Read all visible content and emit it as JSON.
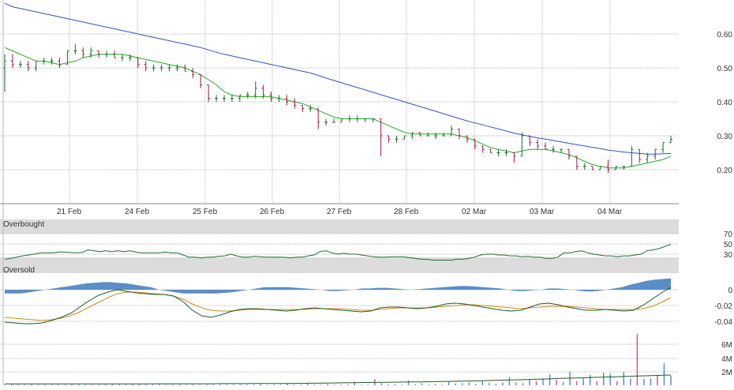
{
  "colors": {
    "up": "#1b6b2a",
    "down": "#9c1846",
    "ma_fast": "#22aa22",
    "ma_slow": "#3a4fc0",
    "rsi_line": "#1f6b3a",
    "rsi_band": "#dcdcdc",
    "macd_hist": "#5b8ec6",
    "macd_line": "#1f5a2a",
    "signal_line": "#d08a1e",
    "vol_up": "#5b8ec6",
    "vol_down": "#d3577f",
    "grid": "#b8b8b8"
  },
  "chart_data": [
    {
      "type": "candlestick",
      "panel": "price",
      "x_labels": [
        "21 Feb",
        "24 Feb",
        "25 Feb",
        "26 Feb",
        "27 Feb",
        "28 Feb",
        "02 Mar",
        "03 Mar",
        "04 Mar"
      ],
      "y_ticks": [
        "0.60",
        "0.50",
        "0.40",
        "0.30",
        "0.20"
      ],
      "ylim": [
        0.1,
        0.7
      ],
      "grid": true,
      "ohlc": [
        [
          0.5,
          0.54,
          0.43,
          0.52
        ],
        [
          0.52,
          0.54,
          0.5,
          0.51
        ],
        [
          0.51,
          0.52,
          0.5,
          0.51
        ],
        [
          0.51,
          0.52,
          0.49,
          0.5
        ],
        [
          0.5,
          0.52,
          0.49,
          0.52
        ],
        [
          0.52,
          0.53,
          0.51,
          0.52
        ],
        [
          0.52,
          0.53,
          0.51,
          0.52
        ],
        [
          0.52,
          0.53,
          0.5,
          0.51
        ],
        [
          0.51,
          0.55,
          0.51,
          0.55
        ],
        [
          0.55,
          0.57,
          0.54,
          0.55
        ],
        [
          0.55,
          0.56,
          0.53,
          0.54
        ],
        [
          0.54,
          0.56,
          0.53,
          0.55
        ],
        [
          0.55,
          0.55,
          0.53,
          0.54
        ],
        [
          0.54,
          0.55,
          0.53,
          0.54
        ],
        [
          0.54,
          0.55,
          0.53,
          0.53
        ],
        [
          0.53,
          0.54,
          0.52,
          0.53
        ],
        [
          0.53,
          0.54,
          0.52,
          0.53
        ],
        [
          0.53,
          0.53,
          0.5,
          0.51
        ],
        [
          0.51,
          0.52,
          0.49,
          0.5
        ],
        [
          0.5,
          0.51,
          0.49,
          0.5
        ],
        [
          0.5,
          0.51,
          0.49,
          0.5
        ],
        [
          0.5,
          0.51,
          0.49,
          0.5
        ],
        [
          0.5,
          0.51,
          0.49,
          0.5
        ],
        [
          0.5,
          0.51,
          0.49,
          0.49
        ],
        [
          0.49,
          0.5,
          0.47,
          0.48
        ],
        [
          0.48,
          0.48,
          0.44,
          0.45
        ],
        [
          0.45,
          0.45,
          0.4,
          0.41
        ],
        [
          0.41,
          0.42,
          0.4,
          0.41
        ],
        [
          0.41,
          0.42,
          0.4,
          0.41
        ],
        [
          0.41,
          0.42,
          0.4,
          0.41
        ],
        [
          0.41,
          0.42,
          0.4,
          0.42
        ],
        [
          0.42,
          0.43,
          0.41,
          0.42
        ],
        [
          0.42,
          0.46,
          0.41,
          0.44
        ],
        [
          0.44,
          0.45,
          0.41,
          0.42
        ],
        [
          0.42,
          0.43,
          0.4,
          0.41
        ],
        [
          0.41,
          0.42,
          0.4,
          0.41
        ],
        [
          0.41,
          0.42,
          0.39,
          0.4
        ],
        [
          0.4,
          0.41,
          0.38,
          0.39
        ],
        [
          0.39,
          0.39,
          0.37,
          0.38
        ],
        [
          0.38,
          0.39,
          0.37,
          0.38
        ],
        [
          0.38,
          0.38,
          0.32,
          0.34
        ],
        [
          0.34,
          0.35,
          0.33,
          0.34
        ],
        [
          0.34,
          0.35,
          0.34,
          0.34
        ],
        [
          0.34,
          0.35,
          0.34,
          0.35
        ],
        [
          0.35,
          0.36,
          0.34,
          0.35
        ],
        [
          0.35,
          0.36,
          0.34,
          0.35
        ],
        [
          0.35,
          0.35,
          0.34,
          0.35
        ],
        [
          0.35,
          0.35,
          0.34,
          0.35
        ],
        [
          0.35,
          0.35,
          0.24,
          0.3
        ],
        [
          0.3,
          0.3,
          0.28,
          0.29
        ],
        [
          0.29,
          0.3,
          0.28,
          0.29
        ],
        [
          0.29,
          0.3,
          0.29,
          0.3
        ],
        [
          0.3,
          0.31,
          0.29,
          0.31
        ],
        [
          0.31,
          0.31,
          0.3,
          0.3
        ],
        [
          0.3,
          0.31,
          0.3,
          0.3
        ],
        [
          0.3,
          0.31,
          0.29,
          0.3
        ],
        [
          0.3,
          0.31,
          0.3,
          0.3
        ],
        [
          0.3,
          0.33,
          0.3,
          0.32
        ],
        [
          0.32,
          0.32,
          0.29,
          0.3
        ],
        [
          0.3,
          0.3,
          0.28,
          0.29
        ],
        [
          0.29,
          0.29,
          0.26,
          0.27
        ],
        [
          0.27,
          0.27,
          0.25,
          0.26
        ],
        [
          0.26,
          0.26,
          0.25,
          0.25
        ],
        [
          0.25,
          0.26,
          0.24,
          0.25
        ],
        [
          0.25,
          0.26,
          0.24,
          0.25
        ],
        [
          0.25,
          0.25,
          0.22,
          0.24
        ],
        [
          0.24,
          0.31,
          0.24,
          0.3
        ],
        [
          0.3,
          0.3,
          0.27,
          0.28
        ],
        [
          0.28,
          0.29,
          0.26,
          0.27
        ],
        [
          0.27,
          0.28,
          0.26,
          0.26
        ],
        [
          0.26,
          0.27,
          0.25,
          0.26
        ],
        [
          0.26,
          0.26,
          0.25,
          0.26
        ],
        [
          0.26,
          0.26,
          0.23,
          0.24
        ],
        [
          0.24,
          0.24,
          0.2,
          0.21
        ],
        [
          0.21,
          0.22,
          0.2,
          0.21
        ],
        [
          0.21,
          0.21,
          0.2,
          0.2
        ],
        [
          0.2,
          0.21,
          0.2,
          0.21
        ],
        [
          0.21,
          0.23,
          0.19,
          0.2
        ],
        [
          0.2,
          0.21,
          0.2,
          0.21
        ],
        [
          0.21,
          0.21,
          0.2,
          0.21
        ],
        [
          0.21,
          0.27,
          0.21,
          0.26
        ],
        [
          0.26,
          0.26,
          0.22,
          0.23
        ],
        [
          0.23,
          0.25,
          0.22,
          0.24
        ],
        [
          0.24,
          0.26,
          0.23,
          0.26
        ],
        [
          0.26,
          0.28,
          0.25,
          0.28
        ],
        [
          0.28,
          0.3,
          0.28,
          0.29
        ]
      ],
      "ma_fast": [
        0.56,
        0.55,
        0.54,
        0.53,
        0.52,
        0.52,
        0.515,
        0.51,
        0.515,
        0.52,
        0.53,
        0.535,
        0.54,
        0.54,
        0.54,
        0.54,
        0.535,
        0.53,
        0.525,
        0.52,
        0.515,
        0.51,
        0.505,
        0.5,
        0.49,
        0.48,
        0.465,
        0.45,
        0.43,
        0.42,
        0.415,
        0.415,
        0.415,
        0.415,
        0.415,
        0.41,
        0.405,
        0.4,
        0.395,
        0.385,
        0.375,
        0.365,
        0.355,
        0.35,
        0.35,
        0.35,
        0.35,
        0.35,
        0.34,
        0.33,
        0.32,
        0.31,
        0.305,
        0.305,
        0.305,
        0.305,
        0.305,
        0.305,
        0.3,
        0.295,
        0.285,
        0.275,
        0.265,
        0.26,
        0.255,
        0.25,
        0.255,
        0.26,
        0.26,
        0.26,
        0.255,
        0.25,
        0.245,
        0.235,
        0.225,
        0.215,
        0.21,
        0.205,
        0.205,
        0.205,
        0.21,
        0.215,
        0.22,
        0.225,
        0.23,
        0.24
      ],
      "ma_slow": [
        0.69,
        0.68,
        0.675,
        0.67,
        0.665,
        0.66,
        0.655,
        0.65,
        0.645,
        0.64,
        0.635,
        0.63,
        0.625,
        0.62,
        0.615,
        0.61,
        0.605,
        0.6,
        0.595,
        0.59,
        0.585,
        0.58,
        0.575,
        0.57,
        0.565,
        0.56,
        0.553,
        0.546,
        0.54,
        0.535,
        0.53,
        0.525,
        0.52,
        0.515,
        0.51,
        0.505,
        0.5,
        0.495,
        0.49,
        0.485,
        0.478,
        0.47,
        0.463,
        0.456,
        0.449,
        0.442,
        0.435,
        0.428,
        0.421,
        0.414,
        0.407,
        0.4,
        0.393,
        0.386,
        0.379,
        0.372,
        0.365,
        0.358,
        0.351,
        0.344,
        0.338,
        0.332,
        0.326,
        0.32,
        0.314,
        0.308,
        0.303,
        0.298,
        0.294,
        0.29,
        0.286,
        0.282,
        0.278,
        0.274,
        0.27,
        0.266,
        0.262,
        0.258,
        0.255,
        0.252,
        0.25,
        0.248,
        0.246,
        0.246,
        0.247,
        0.248
      ]
    },
    {
      "type": "line",
      "panel": "rsi",
      "y_ticks": [
        "70",
        "50",
        "30"
      ],
      "band_labels": {
        "overbought": "Overbought",
        "oversold": "Oversold"
      },
      "ylim": [
        0,
        100
      ],
      "values": [
        40,
        42,
        45,
        48,
        50,
        52,
        55,
        55,
        55,
        57,
        57,
        56,
        55,
        56,
        62,
        60,
        58,
        60,
        58,
        60,
        58,
        60,
        57,
        55,
        55,
        55,
        55,
        57,
        55,
        55,
        50,
        45,
        45,
        43,
        45,
        45,
        47,
        48,
        52,
        48,
        45,
        45,
        47,
        46,
        45,
        45,
        45,
        45,
        43,
        45,
        45,
        48,
        50,
        58,
        60,
        55,
        52,
        54,
        52,
        52,
        50,
        48,
        46,
        45,
        45,
        46,
        46,
        46,
        44,
        42,
        40,
        40,
        38,
        38,
        38,
        38,
        40,
        40,
        42,
        45,
        50,
        52,
        52,
        50,
        50,
        48,
        48,
        46,
        47,
        45,
        45,
        42,
        42,
        45,
        55,
        55,
        58,
        60,
        55,
        52,
        50,
        48,
        48,
        46,
        48,
        48,
        50,
        52,
        60,
        62,
        65,
        70,
        75
      ]
    },
    {
      "type": "area",
      "panel": "macd",
      "y_ticks": [
        "0",
        "-0.02",
        "-0.04"
      ],
      "ylim": [
        -0.05,
        0.01
      ],
      "histogram": [
        -0.003,
        -0.003,
        -0.003,
        -0.002,
        -0.001,
        0.0,
        0.001,
        0.002,
        0.003,
        0.004,
        0.005,
        0.0055,
        0.006,
        0.006,
        0.0055,
        0.005,
        0.004,
        0.003,
        0.002,
        0.0,
        -0.001,
        -0.002,
        -0.003,
        -0.003,
        -0.003,
        -0.003,
        -0.003,
        -0.0025,
        -0.002,
        -0.001,
        0.0,
        0.001,
        0.002,
        0.002,
        0.002,
        0.002,
        0.0015,
        0.001,
        0.0005,
        0.0,
        -0.001,
        -0.001,
        -0.0005,
        0.0,
        0.001,
        0.001,
        0.0015,
        0.0015,
        0.001,
        0.0005,
        0.0,
        0.0005,
        0.001,
        0.0015,
        0.002,
        0.0025,
        0.003,
        0.003,
        0.0025,
        0.002,
        0.0015,
        0.001,
        0.0,
        -0.001,
        -0.001,
        -0.0005,
        0.0,
        0.001,
        0.001,
        0.0005,
        0.0,
        -0.001,
        -0.0015,
        -0.001,
        0.0,
        0.001,
        0.002,
        0.004,
        0.0055,
        0.007,
        0.008,
        0.0085,
        0.009
      ],
      "macd": [
        -0.041,
        -0.042,
        -0.043,
        -0.043,
        -0.042,
        -0.039,
        -0.035,
        -0.03,
        -0.022,
        -0.014,
        -0.007,
        -0.003,
        0.0,
        -0.002,
        -0.004,
        -0.005,
        -0.006,
        -0.006,
        -0.008,
        -0.015,
        -0.026,
        -0.033,
        -0.035,
        -0.032,
        -0.028,
        -0.025,
        -0.024,
        -0.024,
        -0.025,
        -0.026,
        -0.027,
        -0.026,
        -0.024,
        -0.023,
        -0.024,
        -0.025,
        -0.026,
        -0.027,
        -0.028,
        -0.027,
        -0.023,
        -0.022,
        -0.022,
        -0.023,
        -0.024,
        -0.023,
        -0.021,
        -0.018,
        -0.017,
        -0.018,
        -0.02,
        -0.022,
        -0.024,
        -0.026,
        -0.027,
        -0.026,
        -0.022,
        -0.018,
        -0.017,
        -0.019,
        -0.022,
        -0.024,
        -0.026,
        -0.026,
        -0.025,
        -0.026,
        -0.027,
        -0.026,
        -0.02,
        -0.012,
        -0.004,
        0.003
      ],
      "signal": [
        -0.035,
        -0.036,
        -0.037,
        -0.038,
        -0.039,
        -0.038,
        -0.036,
        -0.033,
        -0.028,
        -0.022,
        -0.016,
        -0.01,
        -0.005,
        -0.003,
        -0.003,
        -0.004,
        -0.005,
        -0.006,
        -0.008,
        -0.012,
        -0.018,
        -0.023,
        -0.026,
        -0.027,
        -0.027,
        -0.026,
        -0.025,
        -0.025,
        -0.025,
        -0.025,
        -0.025,
        -0.025,
        -0.025,
        -0.024,
        -0.024,
        -0.024,
        -0.024,
        -0.025,
        -0.026,
        -0.026,
        -0.025,
        -0.024,
        -0.023,
        -0.023,
        -0.023,
        -0.023,
        -0.022,
        -0.021,
        -0.02,
        -0.019,
        -0.019,
        -0.02,
        -0.021,
        -0.022,
        -0.023,
        -0.024,
        -0.023,
        -0.022,
        -0.021,
        -0.021,
        -0.021,
        -0.022,
        -0.023,
        -0.024,
        -0.025,
        -0.025,
        -0.025,
        -0.025,
        -0.024,
        -0.021,
        -0.016,
        -0.01
      ]
    },
    {
      "type": "bar",
      "panel": "volume",
      "y_ticks": [
        "6M",
        "4M",
        "2M"
      ],
      "ylim": [
        0,
        9000000
      ],
      "values": [
        100000,
        150000,
        100000,
        80000,
        120000,
        90000,
        100000,
        80000,
        100000,
        90000,
        120000,
        110000,
        100000,
        80000,
        90000,
        100000,
        130000,
        90000,
        100000,
        110000,
        120000,
        100000,
        100000,
        150000,
        90000,
        100000,
        110000,
        90000,
        100000,
        80000,
        110000,
        90000,
        100000,
        120000,
        100000,
        150000,
        100000,
        90000,
        200000,
        80000,
        100000,
        90000,
        250000,
        90000,
        100000,
        300000,
        110000,
        100000,
        200000,
        90000,
        100000,
        120000,
        500000,
        90000,
        100000,
        900000,
        300000,
        150000,
        180000,
        100000,
        700000,
        150000,
        300000,
        100000,
        200000,
        100000,
        500000,
        250000,
        300000,
        400000,
        200000,
        600000,
        350000,
        200000,
        400000,
        1200000,
        400000,
        300000,
        800000,
        600000,
        1000000,
        1600000,
        800000,
        500000,
        2000000,
        600000,
        1000000,
        1500000,
        600000,
        1800000,
        1700000,
        600000,
        1900000,
        1000000,
        7500000,
        900000,
        1000000,
        1500000,
        3200000,
        1400000
      ],
      "ma": [
        200000,
        200000,
        200000,
        200000,
        200000,
        200000,
        200000,
        200000,
        200000,
        200000,
        200000,
        200000,
        200000,
        200000,
        220000,
        220000,
        220000,
        220000,
        220000,
        220000,
        240000,
        240000,
        240000,
        250000,
        260000,
        260000,
        270000,
        280000,
        300000,
        320000,
        340000,
        360000,
        380000,
        400000,
        420000,
        440000,
        460000,
        480000,
        500000,
        520000,
        550000,
        580000,
        610000,
        640000,
        680000,
        720000,
        760000,
        800000,
        850000,
        900000,
        950000,
        1000000,
        1050000,
        1100000,
        1150000,
        1200000,
        1250000,
        1300000,
        1350000,
        1400000,
        1450000,
        1500000
      ]
    }
  ]
}
